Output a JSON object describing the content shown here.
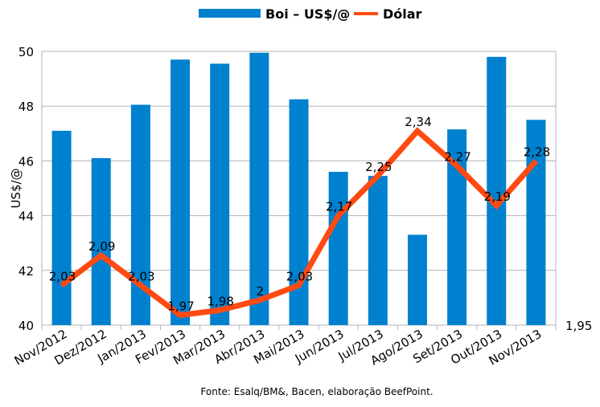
{
  "chart_data": {
    "type": "bar+line",
    "categories": [
      "Nov/2012",
      "Dez/2012",
      "Jan/2013",
      "Fev/2013",
      "Mar/2013",
      "Abr/2013",
      "Mai/2013",
      "Jun/2013",
      "Jul/2013",
      "Ago/2013",
      "Set/2013",
      "Out/2013",
      "Nov/2013"
    ],
    "series": [
      {
        "name": "Boi – US$/@",
        "type": "bar",
        "axis": "left",
        "color": "#0081D0",
        "values": [
          47.1,
          46.1,
          48.05,
          49.7,
          49.55,
          49.95,
          48.25,
          45.6,
          45.45,
          43.3,
          47.15,
          49.8,
          47.5
        ]
      },
      {
        "name": "Dólar",
        "type": "line",
        "axis": "right",
        "color": "#FF4A12",
        "values": [
          2.03,
          2.09,
          2.03,
          1.97,
          1.98,
          2.0,
          2.03,
          2.17,
          2.25,
          2.34,
          2.27,
          2.19,
          2.28
        ],
        "data_labels": [
          "2,03",
          "2,09",
          "2,03",
          "1,97",
          "1,98",
          "2",
          "2,03",
          "2,17",
          "2,25",
          "2,34",
          "2,27",
          "2,19",
          "2,28"
        ]
      }
    ],
    "ylabel": "US$/@",
    "ylim": [
      40,
      50
    ],
    "yticks": [
      "40",
      "42",
      "44",
      "46",
      "48",
      "50"
    ],
    "y2lim": [
      1.95,
      2.5
    ],
    "y2ticks": [
      "1,95"
    ],
    "grid": true,
    "legend": "top-center",
    "footnote": "Fonte: Esalq/BM&, Bacen, elaboração BeefPoint."
  }
}
